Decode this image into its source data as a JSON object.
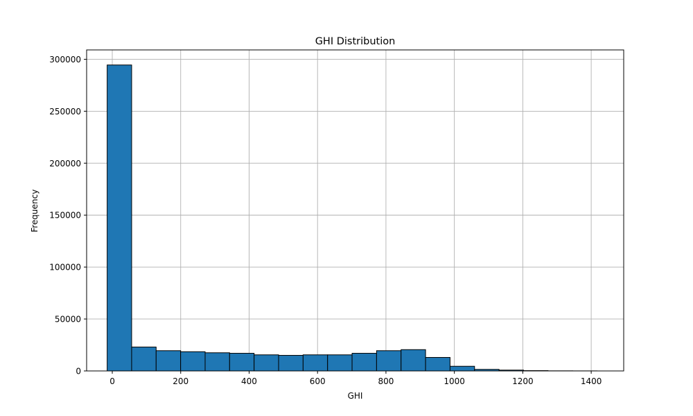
{
  "chart_data": {
    "type": "bar",
    "title": "GHI Distribution",
    "xlabel": "GHI",
    "ylabel": "Frequency",
    "grid": true,
    "xlim": [
      -75,
      1495
    ],
    "ylim": [
      0,
      309000
    ],
    "xticks": [
      0,
      200,
      400,
      600,
      800,
      1000,
      1200,
      1400
    ],
    "xtick_labels": [
      "0",
      "200",
      "400",
      "600",
      "800",
      "1000",
      "1200",
      "1400"
    ],
    "yticks": [
      0,
      50000,
      100000,
      150000,
      200000,
      250000,
      300000
    ],
    "ytick_labels": [
      "0",
      "50000",
      "100000",
      "150000",
      "200000",
      "250000",
      "300000"
    ],
    "bin_edges": [
      -15,
      56.6,
      128.2,
      199.8,
      271.4,
      343,
      414.6,
      486.2,
      557.8,
      629.4,
      701,
      772.6,
      844.2,
      915.8,
      987.4,
      1059,
      1130.6,
      1202.2,
      1273.8,
      1345.4,
      1417
    ],
    "counts": [
      294500,
      23000,
      19500,
      18500,
      17500,
      17000,
      15500,
      15000,
      15500,
      15500,
      17000,
      19500,
      20500,
      13000,
      4500,
      1500,
      800,
      300,
      100,
      50
    ],
    "bar_color": "#1f77b4",
    "edge_color": "#000000",
    "grid_color": "#b0b0b0"
  }
}
